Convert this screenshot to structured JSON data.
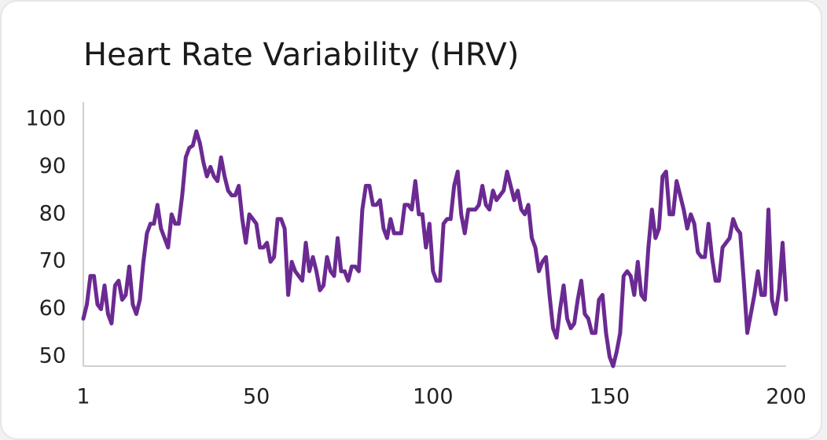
{
  "chart_data": {
    "type": "line",
    "title": "Heart Rate Variability (HRV)",
    "series": [
      {
        "color": "#6b2a92",
        "values": [
          58,
          61,
          67,
          67,
          61,
          60,
          65,
          59,
          57,
          65,
          66,
          62,
          63,
          69,
          61,
          59,
          62,
          70,
          76,
          78,
          78,
          82,
          77,
          75,
          73,
          80,
          78,
          78,
          84,
          92,
          94,
          94.5,
          97.5,
          95,
          91,
          88,
          90,
          88,
          87,
          92,
          88,
          85,
          84,
          84,
          86,
          79,
          74,
          80,
          79,
          78,
          73,
          73,
          74,
          70,
          71,
          79,
          79,
          77,
          63,
          70,
          68,
          67,
          66,
          74,
          68,
          71,
          68,
          64,
          65,
          71,
          68,
          67,
          75,
          68,
          68,
          66,
          69,
          69,
          68,
          81,
          86,
          86,
          82,
          82,
          83,
          77,
          75,
          79,
          76,
          76,
          76,
          82,
          82,
          81,
          87,
          80,
          80,
          73,
          78,
          68,
          66,
          66,
          78,
          79,
          79,
          86,
          89,
          80,
          76,
          81,
          81,
          81,
          82,
          86,
          82,
          81,
          85,
          83,
          84,
          85,
          89,
          86,
          83,
          85,
          81,
          80,
          82,
          75,
          73,
          68,
          70,
          71,
          63,
          56,
          54,
          60,
          65,
          58,
          56,
          57,
          62,
          66,
          59,
          58,
          55,
          55,
          62,
          63,
          55,
          50,
          48,
          51,
          55,
          67,
          68,
          67,
          63,
          70,
          63,
          62,
          73,
          81,
          75,
          77,
          88,
          89,
          80,
          80,
          87,
          84,
          81,
          77,
          80,
          78,
          72,
          71,
          71,
          78,
          71,
          66,
          66,
          73,
          74,
          75,
          79,
          77,
          76,
          66,
          55,
          59,
          63,
          68,
          63,
          63,
          81,
          62,
          59,
          64,
          74,
          62
        ]
      }
    ],
    "xlim": [
      1,
      200
    ],
    "xticks": [
      1,
      50,
      100,
      150,
      200
    ],
    "ylim": [
      48,
      100
    ],
    "yticks": [
      50,
      60,
      70,
      80,
      90,
      100
    ],
    "grid": false
  }
}
